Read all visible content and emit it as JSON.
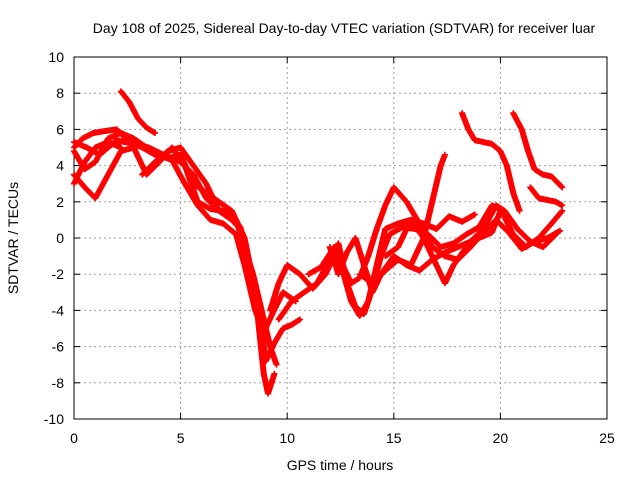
{
  "chart_data": {
    "type": "scatter",
    "title": "Day 108 of 2025, Sidereal Day-to-day VTEC variation (SDTVAR) for receiver luar",
    "xlabel": "GPS time / hours",
    "ylabel": "SDTVAR / TECUs",
    "xlim": [
      0,
      25
    ],
    "ylim": [
      -10,
      10
    ],
    "xticks": [
      0,
      5,
      10,
      15,
      20,
      25
    ],
    "yticks": [
      -10,
      -8,
      -6,
      -4,
      -2,
      0,
      2,
      4,
      6,
      8,
      10
    ],
    "grid": true,
    "marker": "plus",
    "color": "#ff0000",
    "series": [
      {
        "points": [
          [
            2.2,
            8.1
          ],
          [
            2.6,
            7.5
          ],
          [
            3.0,
            6.6
          ],
          [
            3.4,
            6.1
          ],
          [
            3.8,
            5.8
          ]
        ]
      },
      {
        "points": [
          [
            0,
            5.3
          ],
          [
            0.6,
            5.0
          ],
          [
            1.2,
            4.6
          ],
          [
            2.0,
            5.4
          ],
          [
            2.8,
            5.2
          ],
          [
            3.5,
            5.0
          ],
          [
            4.2,
            4.6
          ],
          [
            5.0,
            4.2
          ],
          [
            5.6,
            3.5
          ],
          [
            6.2,
            2.2
          ],
          [
            6.8,
            1.5
          ],
          [
            7.4,
            1.2
          ],
          [
            7.8,
            0.6
          ],
          [
            8.2,
            -1.2
          ],
          [
            8.6,
            -3.5
          ],
          [
            9.0,
            -6.8
          ],
          [
            9.4,
            -5.8
          ],
          [
            9.8,
            -5.0
          ],
          [
            10.2,
            -4.8
          ],
          [
            10.6,
            -4.5
          ]
        ]
      },
      {
        "points": [
          [
            0,
            4.8
          ],
          [
            0.5,
            3.8
          ],
          [
            1.0,
            4.2
          ],
          [
            1.6,
            5.5
          ],
          [
            2.2,
            5.8
          ],
          [
            2.8,
            5.5
          ],
          [
            3.4,
            5.0
          ],
          [
            4.0,
            4.6
          ],
          [
            4.6,
            4.3
          ],
          [
            5.2,
            3.0
          ],
          [
            5.8,
            1.8
          ],
          [
            6.4,
            1.0
          ],
          [
            7.0,
            0.8
          ],
          [
            7.6,
            0.2
          ],
          [
            8.0,
            -1.5
          ],
          [
            8.5,
            -4.0
          ],
          [
            8.9,
            -5.2
          ],
          [
            9.3,
            -4.2
          ],
          [
            9.8,
            -3.0
          ],
          [
            10.4,
            -3.5
          ]
        ]
      },
      {
        "points": [
          [
            0,
            3.5
          ],
          [
            0.5,
            2.8
          ],
          [
            1.0,
            2.2
          ],
          [
            1.6,
            3.5
          ],
          [
            2.2,
            4.8
          ],
          [
            2.8,
            5.0
          ],
          [
            3.4,
            3.5
          ],
          [
            4.0,
            4.2
          ],
          [
            4.6,
            5.0
          ],
          [
            5.2,
            4.0
          ],
          [
            5.8,
            2.0
          ],
          [
            6.4,
            1.6
          ],
          [
            7.0,
            1.5
          ],
          [
            7.6,
            1.0
          ],
          [
            8.0,
            -0.5
          ],
          [
            8.4,
            -2.0
          ],
          [
            8.8,
            -4.0
          ],
          [
            9.2,
            -6.0
          ],
          [
            9.5,
            -7.0
          ]
        ]
      },
      {
        "points": [
          [
            0,
            5.0
          ],
          [
            0.4,
            5.5
          ],
          [
            0.9,
            5.8
          ],
          [
            1.4,
            5.9
          ],
          [
            2.0,
            6.0
          ],
          [
            2.6,
            5.3
          ],
          [
            3.2,
            5.0
          ],
          [
            3.8,
            4.6
          ],
          [
            4.4,
            4.4
          ],
          [
            5.0,
            4.6
          ],
          [
            5.6,
            3.0
          ],
          [
            6.2,
            2.5
          ],
          [
            6.8,
            2.0
          ],
          [
            7.4,
            1.5
          ],
          [
            8.0,
            0.0
          ],
          [
            8.5,
            -3.0
          ],
          [
            8.9,
            -7.5
          ],
          [
            9.1,
            -8.6
          ],
          [
            9.4,
            -7.5
          ]
        ]
      },
      {
        "points": [
          [
            0,
            3.0
          ],
          [
            0.5,
            4.2
          ],
          [
            1.0,
            5.0
          ],
          [
            1.6,
            5.3
          ],
          [
            2.2,
            5.0
          ]
        ]
      },
      {
        "points": [
          [
            3.2,
            3.5
          ],
          [
            3.8,
            4.2
          ],
          [
            4.4,
            4.8
          ],
          [
            5.0,
            5.0
          ],
          [
            5.6,
            4.0
          ],
          [
            6.2,
            3.0
          ],
          [
            6.8,
            1.5
          ],
          [
            7.4,
            1.0
          ],
          [
            7.8,
            0.5
          ]
        ]
      },
      {
        "points": [
          [
            9.2,
            -4.0
          ],
          [
            9.6,
            -2.5
          ],
          [
            10.0,
            -1.5
          ],
          [
            10.6,
            -2.0
          ],
          [
            11.2,
            -2.8
          ],
          [
            11.8,
            -2.0
          ],
          [
            12.2,
            -1.0
          ],
          [
            12.6,
            -1.8
          ],
          [
            13.0,
            -3.5
          ],
          [
            13.4,
            -4.3
          ],
          [
            13.8,
            -3.5
          ],
          [
            14.2,
            -1.5
          ],
          [
            14.6,
            0.5
          ],
          [
            15.2,
            0.8
          ],
          [
            15.8,
            1.0
          ],
          [
            16.4,
            0.8
          ],
          [
            17.0,
            0.5
          ],
          [
            17.6,
            1.2
          ],
          [
            18.2,
            0.9
          ],
          [
            18.8,
            1.3
          ]
        ]
      },
      {
        "points": [
          [
            9.6,
            -4.5
          ],
          [
            10.2,
            -3.5
          ],
          [
            10.8,
            -3.0
          ],
          [
            11.4,
            -2.5
          ],
          [
            12.0,
            -1.2
          ],
          [
            12.4,
            -0.3
          ],
          [
            12.8,
            -2.5
          ],
          [
            13.2,
            -3.8
          ],
          [
            13.6,
            -4.2
          ],
          [
            14.0,
            -2.8
          ],
          [
            14.4,
            -1.0
          ],
          [
            14.8,
            0.2
          ],
          [
            15.4,
            0.6
          ],
          [
            16.0,
            0.5
          ],
          [
            16.6,
            0.2
          ],
          [
            17.2,
            -0.5
          ],
          [
            17.8,
            -0.3
          ],
          [
            18.4,
            0.2
          ],
          [
            19.0,
            0.6
          ],
          [
            19.6,
            1.8
          ],
          [
            20.0,
            1.6
          ],
          [
            20.6,
            0.2
          ],
          [
            21.2,
            -0.5
          ],
          [
            21.8,
            0.0
          ],
          [
            22.4,
            0.8
          ],
          [
            22.9,
            1.5
          ]
        ]
      },
      {
        "points": [
          [
            11.0,
            -2.0
          ],
          [
            11.6,
            -1.6
          ],
          [
            12.2,
            -0.5
          ],
          [
            12.6,
            -1.5
          ],
          [
            13.0,
            -2.5
          ],
          [
            13.4,
            -2.2
          ],
          [
            13.8,
            -1.0
          ],
          [
            14.2,
            0.5
          ],
          [
            14.6,
            1.8
          ],
          [
            15.0,
            2.8
          ],
          [
            15.6,
            2.0
          ],
          [
            16.2,
            0.8
          ],
          [
            16.8,
            -0.5
          ],
          [
            17.4,
            -1.0
          ],
          [
            18.0,
            -1.2
          ],
          [
            18.6,
            -0.5
          ],
          [
            19.2,
            0.3
          ],
          [
            19.8,
            1.0
          ],
          [
            20.4,
            0.3
          ],
          [
            21.0,
            -0.6
          ],
          [
            21.6,
            -0.2
          ],
          [
            22.2,
            0.0
          ],
          [
            22.8,
            0.4
          ]
        ]
      },
      {
        "points": [
          [
            12.0,
            -0.5
          ],
          [
            12.4,
            -2.0
          ],
          [
            12.8,
            -0.8
          ],
          [
            13.2,
            0.0
          ],
          [
            13.6,
            -1.5
          ],
          [
            14.0,
            -3.0
          ],
          [
            14.4,
            -2.0
          ],
          [
            15.0,
            -1.0
          ],
          [
            15.6,
            -1.5
          ],
          [
            16.2,
            -1.8
          ],
          [
            16.8,
            -1.2
          ],
          [
            17.4,
            -0.8
          ],
          [
            18.0,
            -0.5
          ],
          [
            18.6,
            -0.2
          ],
          [
            19.2,
            0.5
          ],
          [
            19.8,
            1.8
          ],
          [
            20.2,
            1.5
          ],
          [
            20.8,
            0.5
          ],
          [
            21.4,
            -0.2
          ],
          [
            22.0,
            -0.5
          ],
          [
            22.6,
            0.2
          ]
        ]
      },
      {
        "points": [
          [
            13.4,
            -2.0
          ],
          [
            14.0,
            -2.5
          ],
          [
            14.6,
            -1.8
          ],
          [
            15.2,
            -1.2
          ],
          [
            15.8,
            -1.5
          ],
          [
            16.4,
            0.0
          ],
          [
            16.8,
            2.0
          ],
          [
            17.2,
            4.0
          ],
          [
            17.4,
            4.6
          ]
        ]
      },
      {
        "points": [
          [
            14.6,
            -1.0
          ],
          [
            15.2,
            -0.5
          ],
          [
            15.8,
            1.0
          ],
          [
            16.4,
            0.0
          ],
          [
            17.0,
            -1.5
          ],
          [
            17.4,
            -2.5
          ],
          [
            17.8,
            -1.5
          ],
          [
            18.4,
            -0.5
          ],
          [
            19.0,
            0.0
          ],
          [
            19.6,
            0.3
          ],
          [
            20.0,
            1.5
          ]
        ]
      },
      {
        "points": [
          [
            18.2,
            6.9
          ],
          [
            18.5,
            6.0
          ],
          [
            18.8,
            5.4
          ],
          [
            19.2,
            5.3
          ],
          [
            19.6,
            5.2
          ],
          [
            20.0,
            4.8
          ],
          [
            20.3,
            4.0
          ],
          [
            20.6,
            2.5
          ],
          [
            20.9,
            1.5
          ]
        ]
      },
      {
        "points": [
          [
            20.6,
            6.9
          ],
          [
            21.0,
            6.0
          ],
          [
            21.3,
            4.8
          ],
          [
            21.6,
            3.8
          ],
          [
            22.0,
            3.5
          ],
          [
            22.4,
            3.4
          ],
          [
            22.9,
            2.8
          ]
        ]
      },
      {
        "points": [
          [
            21.4,
            2.8
          ],
          [
            21.8,
            2.2
          ],
          [
            22.2,
            2.1
          ],
          [
            22.6,
            2.0
          ],
          [
            22.9,
            1.8
          ]
        ]
      }
    ]
  }
}
